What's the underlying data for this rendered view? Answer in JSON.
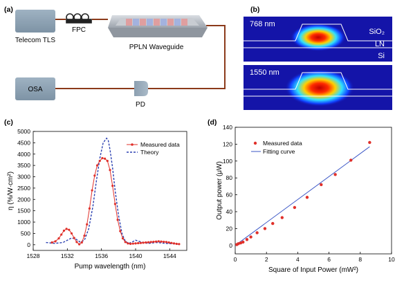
{
  "panels": {
    "a": "(a)",
    "b": "(b)",
    "c": "(c)",
    "d": "(d)"
  },
  "schematic": {
    "tls": "Telecom TLS",
    "fpc": "FPC",
    "waveguide": "PPLN Waveguide",
    "osa": "OSA",
    "pd": "PD"
  },
  "modes": [
    {
      "wavelength": "768 nm",
      "layers": [
        "SiO₂",
        "LN",
        "Si"
      ]
    },
    {
      "wavelength": "1550 nm"
    }
  ],
  "colors": {
    "measured": "#e0302a",
    "theory": "#2a3fb0",
    "fit": "#3a56c6",
    "device_box": "#8fa3b3",
    "mode_bg": "#1414a8"
  },
  "chart_data": [
    {
      "type": "line",
      "xlabel": "Pump wavelength (nm)",
      "ylabel": "η (%/W·cm²)",
      "xlim": [
        1528,
        1546
      ],
      "ylim": [
        -250,
        5000
      ],
      "xticks": [
        1528,
        1532,
        1536,
        1540,
        1544
      ],
      "yticks": [
        0,
        500,
        1000,
        1500,
        2000,
        2500,
        3000,
        3500,
        4000,
        4500,
        5000
      ],
      "legend": "top-right",
      "series": [
        {
          "name": "Measured data",
          "x": [
            1530.2,
            1530.6,
            1531.0,
            1531.3,
            1531.6,
            1531.9,
            1532.2,
            1532.5,
            1532.8,
            1533.1,
            1533.4,
            1533.7,
            1534.0,
            1534.3,
            1534.6,
            1534.9,
            1535.2,
            1535.5,
            1535.8,
            1536.1,
            1536.4,
            1536.7,
            1537.0,
            1537.3,
            1537.6,
            1537.9,
            1538.2,
            1538.5,
            1538.8,
            1539.1,
            1539.4,
            1539.7,
            1540.0,
            1540.3,
            1540.6,
            1540.9,
            1541.2,
            1541.5,
            1541.8,
            1542.1,
            1542.4,
            1542.7,
            1543.0,
            1543.3,
            1543.6,
            1543.9,
            1544.2,
            1544.5,
            1544.8,
            1545.1
          ],
          "values": [
            100,
            150,
            280,
            450,
            620,
            700,
            660,
            500,
            300,
            120,
            20,
            100,
            400,
            900,
            1600,
            2400,
            3050,
            3500,
            3700,
            3820,
            3800,
            3700,
            3300,
            2600,
            1800,
            1100,
            600,
            280,
            120,
            60,
            40,
            50,
            60,
            70,
            80,
            90,
            100,
            110,
            120,
            130,
            140,
            150,
            140,
            130,
            120,
            100,
            80,
            60,
            40,
            30
          ]
        },
        {
          "name": "Theory",
          "x": [
            1529.5,
            1530.5,
            1531.5,
            1532.0,
            1532.5,
            1533.0,
            1533.5,
            1534.0,
            1534.5,
            1535.0,
            1535.4,
            1535.8,
            1536.2,
            1536.6,
            1536.8,
            1537.0,
            1537.3,
            1537.6,
            1538.0,
            1538.4,
            1538.8,
            1539.2,
            1539.6,
            1540.0,
            1540.5,
            1541.0,
            1541.5,
            1542.0,
            1542.5,
            1543.0,
            1543.5,
            1544.0,
            1544.5,
            1545.0
          ],
          "values": [
            100,
            60,
            100,
            200,
            300,
            250,
            120,
            200,
            700,
            1700,
            2800,
            3800,
            4500,
            4700,
            4600,
            4200,
            3400,
            2400,
            1300,
            500,
            150,
            60,
            120,
            200,
            140,
            80,
            60,
            80,
            100,
            80,
            60,
            50,
            40,
            30
          ]
        }
      ]
    },
    {
      "type": "scatter",
      "xlabel": "Square of Input Power (mW²)",
      "ylabel": "Output power (μW)",
      "xlim": [
        0,
        10
      ],
      "ylim": [
        -10,
        140
      ],
      "xticks": [
        0,
        2,
        4,
        6,
        8,
        10
      ],
      "yticks": [
        0,
        20,
        40,
        60,
        80,
        100,
        120,
        140
      ],
      "legend": "top-left",
      "series": [
        {
          "name": "Measured data",
          "x": [
            0.1,
            0.2,
            0.35,
            0.5,
            0.75,
            1.0,
            1.4,
            1.9,
            2.4,
            3.0,
            3.8,
            4.6,
            5.5,
            6.4,
            7.4,
            8.6
          ],
          "values": [
            1,
            2,
            3,
            4,
            7,
            10,
            15,
            20,
            26,
            33,
            45,
            57,
            72,
            84,
            101,
            122
          ]
        },
        {
          "name": "Fitting curve",
          "x": [
            0,
            8.6
          ],
          "values": [
            0,
            117
          ]
        }
      ]
    }
  ]
}
